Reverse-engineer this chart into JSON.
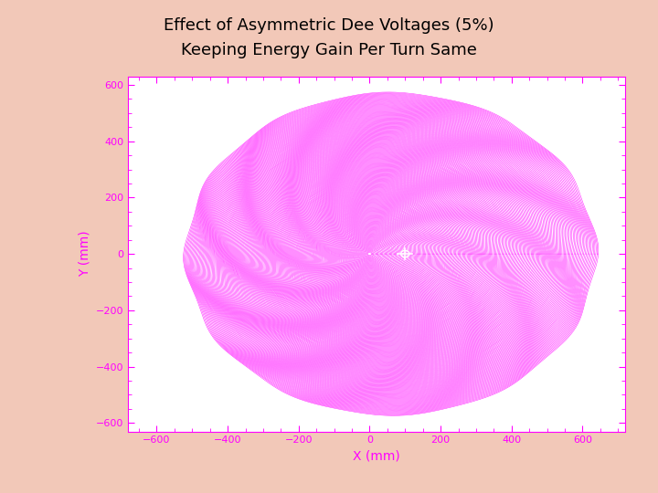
{
  "title_line1": "Effect of Asymmetric Dee Voltages (5%)",
  "title_line2": "Keeping Energy Gain Per Turn Same",
  "xlabel": "X (mm)",
  "ylabel": "Y (mm)",
  "xlim": [
    -680,
    720
  ],
  "ylim": [
    -630,
    630
  ],
  "xticks": [
    -600,
    -400,
    -200,
    0,
    200,
    400,
    600
  ],
  "yticks": [
    -600,
    -400,
    -200,
    0,
    200,
    400,
    600
  ],
  "plot_color": "#FF00FF",
  "background_color": "#FFFFFF",
  "outer_bg": "#F2C8B8",
  "tick_color": "#FF00FF",
  "label_color": "#FF00FF",
  "title_color": "#000000",
  "num_orbits": 200,
  "r_start": 5,
  "r_end": 575,
  "line_width": 0.35
}
